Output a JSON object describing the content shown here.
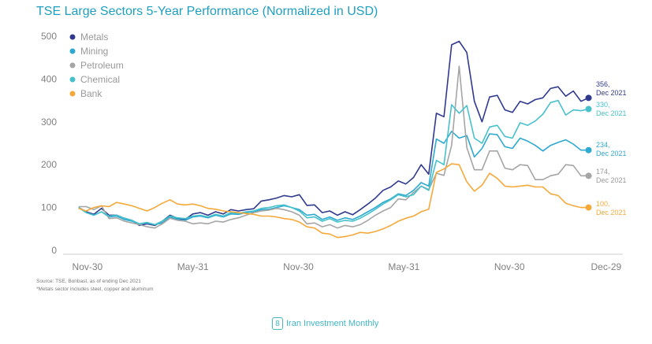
{
  "title": "TSE Large Sectors 5-Year Performance (Normalized in USD)",
  "source_note": "Source: TSE, Bonbast, as of  ending Dec 2021",
  "footnote": "*Metals sector includes steel, copper and aluminum",
  "footer": {
    "page_number": "8",
    "publication": "Iran Investment Monthly"
  },
  "chart_data": {
    "type": "line",
    "title": "TSE Large Sectors 5-Year Performance (Normalized in USD)",
    "xlabel": "",
    "ylabel": "",
    "ylim": [
      0,
      500
    ],
    "yticks": [
      0,
      100,
      200,
      300,
      400,
      500
    ],
    "x_range": [
      -1.5,
      61
    ],
    "xticks": [
      {
        "x": 1,
        "label": "Nov-30"
      },
      {
        "x": 13,
        "label": "May-31"
      },
      {
        "x": 25,
        "label": "Nov-30"
      },
      {
        "x": 37,
        "label": "May-31"
      },
      {
        "x": 49,
        "label": "Nov-30"
      },
      {
        "x": 60,
        "label": "Dec-29"
      }
    ],
    "grid": false,
    "legend_position": "top-left",
    "series": [
      {
        "name": "Metals",
        "color": "#2f3a8f",
        "end_label": [
          "356,",
          "Dec 2021"
        ],
        "values": [
          100,
          90,
          84,
          98,
          82,
          82,
          75,
          70,
          58,
          62,
          58,
          68,
          82,
          75,
          72,
          85,
          88,
          82,
          90,
          85,
          95,
          92,
          95,
          97,
          115,
          118,
          122,
          128,
          125,
          130,
          105,
          106,
          88,
          92,
          82,
          90,
          83,
          95,
          108,
          122,
          140,
          148,
          162,
          155,
          170,
          200,
          178,
          320,
          312,
          480,
          488,
          462,
          348,
          300,
          358,
          362,
          328,
          322,
          348,
          342,
          352,
          356,
          378,
          382,
          360,
          372,
          348,
          356
        ]
      },
      {
        "name": "Mining",
        "color": "#2eaad1",
        "end_label": [
          "234,",
          "Dec 2021"
        ],
        "values": [
          100,
          88,
          82,
          90,
          78,
          80,
          72,
          68,
          62,
          65,
          60,
          64,
          78,
          72,
          70,
          78,
          80,
          76,
          82,
          78,
          85,
          84,
          88,
          90,
          95,
          96,
          100,
          104,
          100,
          95,
          82,
          84,
          72,
          78,
          70,
          76,
          72,
          80,
          90,
          100,
          112,
          120,
          132,
          128,
          140,
          158,
          150,
          260,
          250,
          278,
          262,
          268,
          218,
          238,
          272,
          270,
          242,
          238,
          262,
          255,
          245,
          232,
          245,
          252,
          258,
          248,
          234,
          234
        ]
      },
      {
        "name": "Petroleum",
        "color": "#a5a5a5",
        "end_label": [
          "174,",
          "Dec 2021"
        ],
        "values": [
          102,
          102,
          95,
          104,
          74,
          76,
          68,
          64,
          60,
          55,
          52,
          62,
          75,
          70,
          68,
          62,
          64,
          62,
          68,
          66,
          72,
          76,
          82,
          88,
          92,
          94,
          98,
          95,
          90,
          82,
          62,
          64,
          55,
          60,
          52,
          58,
          55,
          60,
          70,
          82,
          92,
          100,
          120,
          118,
          135,
          150,
          142,
          180,
          175,
          245,
          430,
          240,
          188,
          188,
          232,
          232,
          192,
          188,
          200,
          198,
          165,
          165,
          174,
          178,
          200,
          198,
          174,
          174
        ]
      },
      {
        "name": "Chemical",
        "color": "#46c1cc",
        "end_label": [
          "330,",
          "Dec 2021"
        ],
        "values": [
          100,
          88,
          82,
          90,
          80,
          82,
          75,
          70,
          62,
          64,
          60,
          68,
          80,
          76,
          74,
          80,
          82,
          78,
          84,
          80,
          88,
          86,
          90,
          92,
          98,
          100,
          104,
          106,
          100,
          92,
          76,
          78,
          68,
          74,
          66,
          70,
          68,
          75,
          85,
          96,
          108,
          118,
          130,
          125,
          130,
          150,
          140,
          210,
          200,
          340,
          320,
          338,
          262,
          250,
          288,
          292,
          266,
          262,
          298,
          292,
          302,
          318,
          345,
          350,
          316,
          328,
          326,
          330
        ]
      },
      {
        "name": "Bank",
        "color": "#f5a93b",
        "end_label": [
          "100,",
          "Dec 2021"
        ],
        "values": [
          98,
          92,
          100,
          104,
          102,
          112,
          108,
          104,
          98,
          92,
          100,
          110,
          118,
          108,
          106,
          108,
          104,
          98,
          96,
          92,
          90,
          88,
          86,
          84,
          80,
          80,
          78,
          74,
          72,
          66,
          55,
          52,
          40,
          38,
          30,
          32,
          36,
          42,
          40,
          44,
          50,
          58,
          68,
          75,
          80,
          90,
          96,
          182,
          190,
          202,
          200,
          160,
          138,
          152,
          180,
          168,
          150,
          148,
          150,
          152,
          148,
          148,
          132,
          128,
          110,
          104,
          100,
          100
        ]
      }
    ]
  }
}
